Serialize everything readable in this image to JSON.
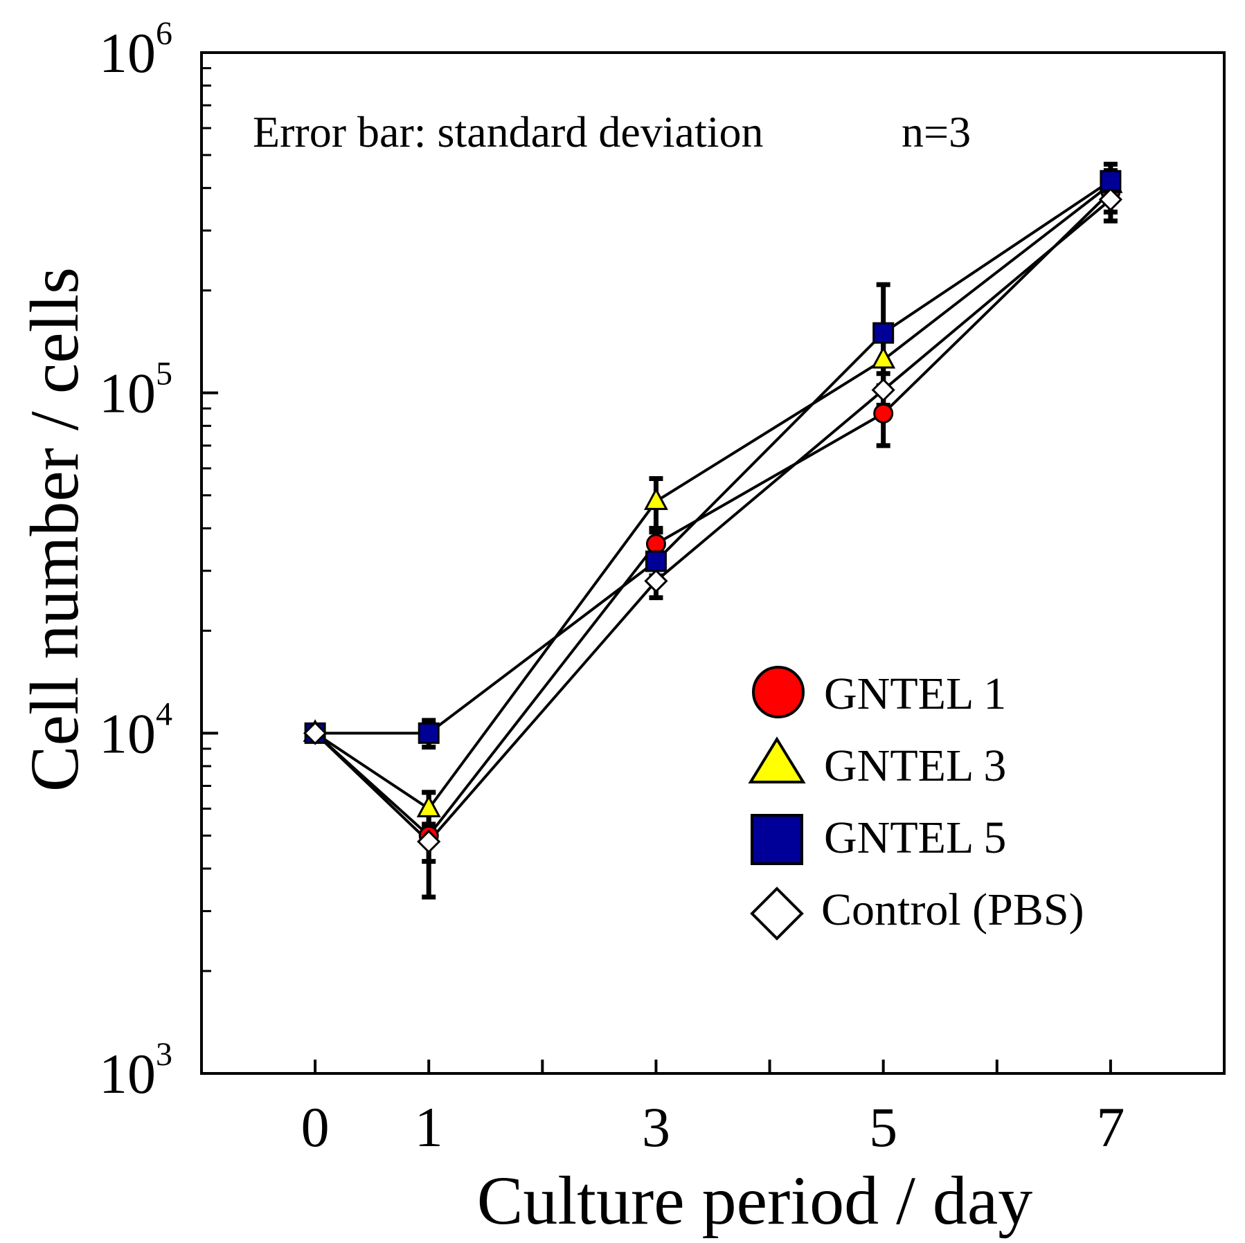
{
  "chart_data": {
    "type": "line",
    "title": "",
    "xlabel": "Culture period / day",
    "ylabel": "Cell number / cells",
    "yscale": "log",
    "xlim": [
      -1,
      8
    ],
    "ylim": [
      1000,
      1000000
    ],
    "x_ticks_labeled": [
      0,
      1,
      3,
      5,
      7
    ],
    "x_ticks_minor": [
      2,
      4,
      6
    ],
    "y_ticks": [
      {
        "value": 1000,
        "base": "10",
        "exp": "3"
      },
      {
        "value": 10000,
        "base": "10",
        "exp": "4"
      },
      {
        "value": 100000,
        "base": "10",
        "exp": "5"
      },
      {
        "value": 1000000,
        "base": "10",
        "exp": "6"
      }
    ],
    "annotations": {
      "error_bar_note": "Error bar: standard deviation",
      "n_note": "n=3"
    },
    "legend_position": "lower-right",
    "series": [
      {
        "name": "GNTEL 1",
        "marker": "circle",
        "color": "#ff0000",
        "x": [
          0,
          1,
          3,
          5,
          7
        ],
        "y": [
          10000,
          5000,
          36000,
          87000,
          390000
        ],
        "err": [
          0,
          1700,
          3000,
          17000,
          50000
        ]
      },
      {
        "name": "GNTEL 3",
        "marker": "triangle",
        "color": "#ffff00",
        "x": [
          0,
          1,
          3,
          5,
          7
        ],
        "y": [
          10000,
          6000,
          48000,
          125000,
          410000
        ],
        "err": [
          0,
          700,
          8000,
          20000,
          40000
        ]
      },
      {
        "name": "GNTEL 5",
        "marker": "square",
        "color": "#000099",
        "x": [
          0,
          1,
          3,
          5,
          7
        ],
        "y": [
          10000,
          10000,
          32000,
          150000,
          420000
        ],
        "err": [
          0,
          900,
          3000,
          58000,
          50000
        ]
      },
      {
        "name": "Control (PBS)",
        "marker": "diamond",
        "color": "#ffffff",
        "x": [
          0,
          1,
          3,
          5,
          7
        ],
        "y": [
          10000,
          4800,
          28000,
          102000,
          370000
        ],
        "err": [
          0,
          600,
          3000,
          12000,
          50000
        ]
      }
    ]
  }
}
